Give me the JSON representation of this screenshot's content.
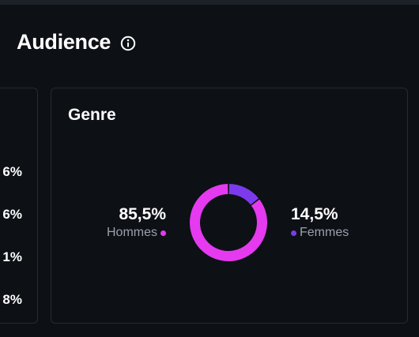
{
  "header": {
    "title": "Audience",
    "info_icon": "info-icon"
  },
  "left_card": {
    "percentages": [
      "6%",
      "6%",
      "1%",
      "8%"
    ]
  },
  "gender_card": {
    "title": "Genre",
    "colors": {
      "hommes": "#e53af0",
      "femmes": "#7c3aed"
    }
  },
  "chart_data": {
    "type": "pie",
    "categories": [
      "Hommes",
      "Femmes"
    ],
    "values": [
      85.5,
      14.5
    ],
    "data_labels": [
      "85,5%",
      "14,5%"
    ]
  }
}
